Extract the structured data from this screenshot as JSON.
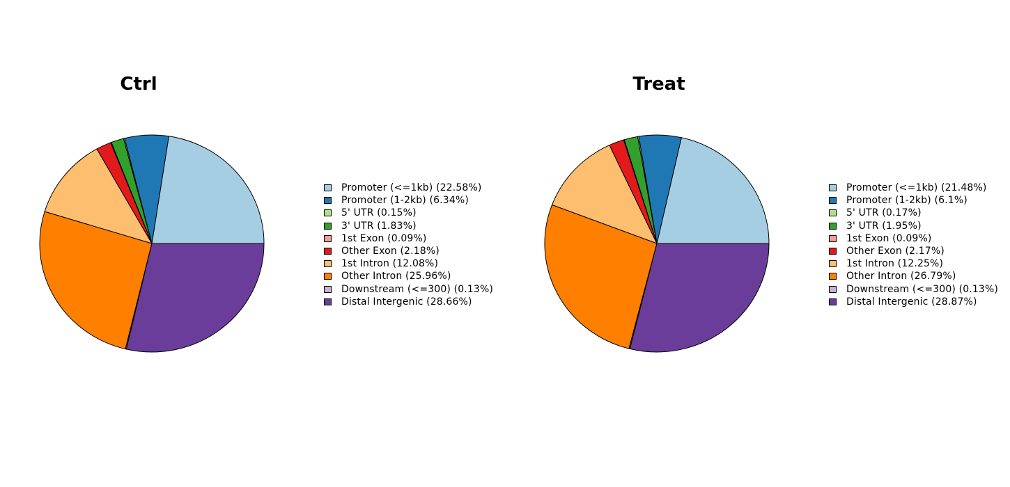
{
  "chart_data": [
    {
      "type": "pie",
      "title": "Ctrl",
      "categories": [
        "Promoter (<=1kb)",
        "Promoter (1-2kb)",
        "5' UTR",
        "3' UTR",
        "1st Exon",
        "Other Exon",
        "1st Intron",
        "Other Intron",
        "Downstream (<=300)",
        "Distal Intergenic"
      ],
      "values": [
        22.58,
        6.34,
        0.15,
        1.83,
        0.09,
        2.18,
        12.08,
        25.96,
        0.13,
        28.66
      ],
      "legend_labels": [
        "Promoter (<=1kb) (22.58%)",
        "Promoter (1-2kb) (6.34%)",
        "5' UTR (0.15%)",
        "3' UTR (1.83%)",
        "1st Exon (0.09%)",
        "Other Exon (2.18%)",
        "1st Intron (12.08%)",
        "Other Intron (25.96%)",
        "Downstream (<=300) (0.13%)",
        "Distal Intergenic (28.66%)"
      ],
      "legend_position": "right"
    },
    {
      "type": "pie",
      "title": "Treat",
      "categories": [
        "Promoter (<=1kb)",
        "Promoter (1-2kb)",
        "5' UTR",
        "3' UTR",
        "1st Exon",
        "Other Exon",
        "1st Intron",
        "Other Intron",
        "Downstream (<=300)",
        "Distal Intergenic"
      ],
      "values": [
        21.48,
        6.1,
        0.17,
        1.95,
        0.09,
        2.17,
        12.25,
        26.79,
        0.13,
        28.87
      ],
      "legend_labels": [
        "Promoter (<=1kb) (21.48%)",
        "Promoter (1-2kb) (6.1%)",
        "5' UTR (0.17%)",
        "3' UTR (1.95%)",
        "1st Exon (0.09%)",
        "Other Exon (2.17%)",
        "1st Intron (12.25%)",
        "Other Intron (26.79%)",
        "Downstream (<=300) (0.13%)",
        "Distal Intergenic (28.87%)"
      ],
      "legend_position": "right"
    }
  ],
  "colors": [
    "#A6CEE3",
    "#1F78B4",
    "#B2DF8A",
    "#33A02C",
    "#FB9A99",
    "#E31A1C",
    "#FDBF6F",
    "#FF7F00",
    "#CAB2D6",
    "#6A3D9A"
  ]
}
